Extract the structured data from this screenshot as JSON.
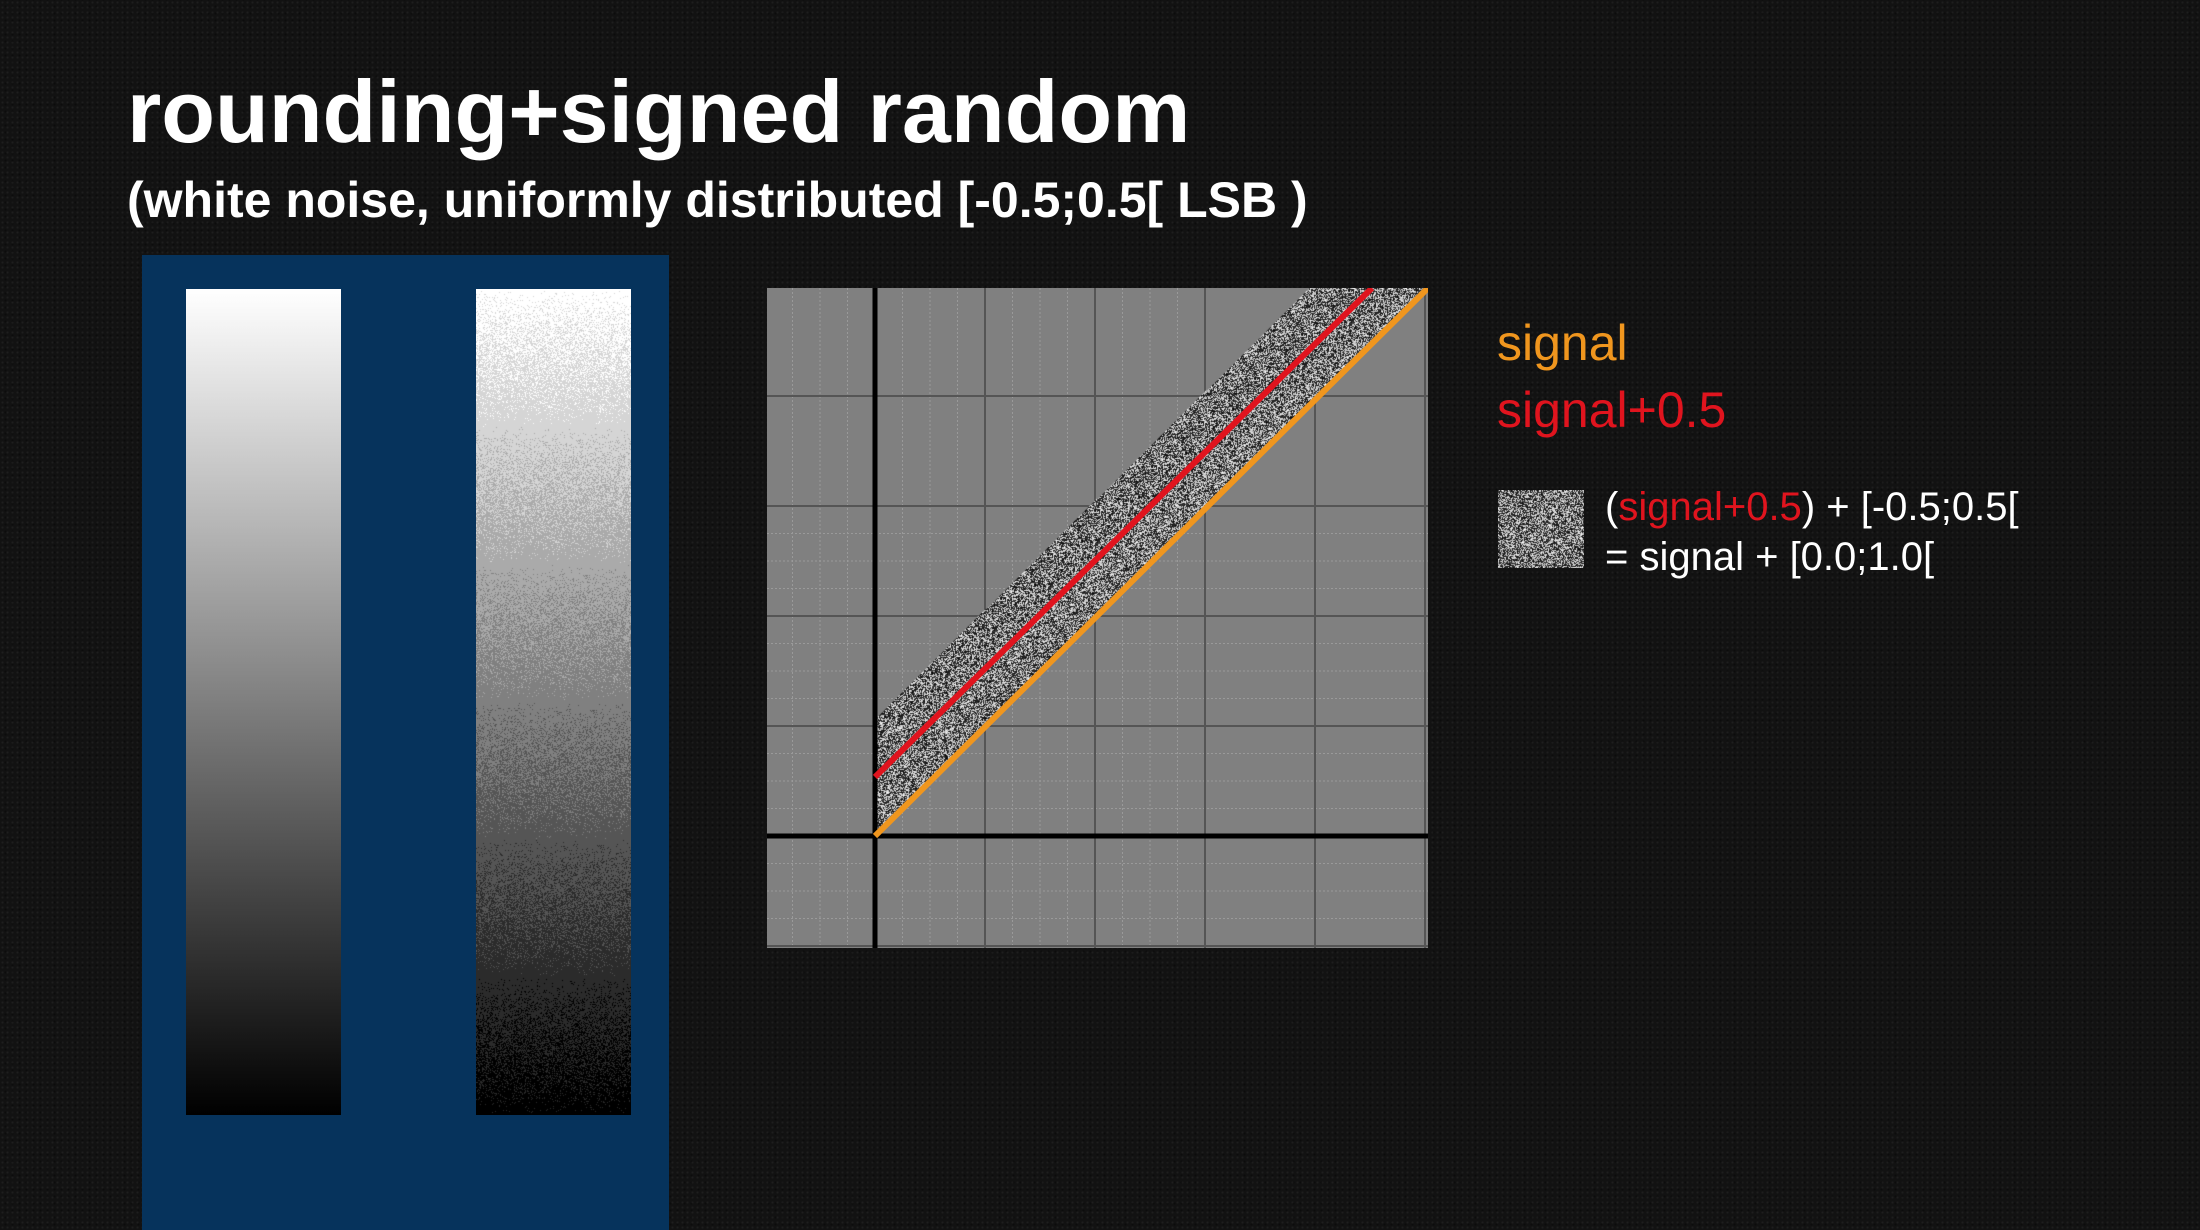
{
  "slide": {
    "title": "rounding+signed random",
    "subtitle": "(white noise, uniformly distributed [-0.5;0.5[ LSB )"
  },
  "legend": {
    "signal_label": "signal",
    "signal_half_label": "signal+0.5",
    "signal_color": "#f0961e",
    "signal_half_color": "#e0141e"
  },
  "formula": {
    "open_paren": "(",
    "term": "signal+0.5",
    "rest": ") + [-0.5;0.5[",
    "line2": "= signal + [0.0;1.0["
  },
  "colors": {
    "panel": "#06335c",
    "plot_background": "#808080",
    "grid_major": "#555555",
    "grid_minor": "#9a9a9a",
    "axis": "#000000"
  }
}
